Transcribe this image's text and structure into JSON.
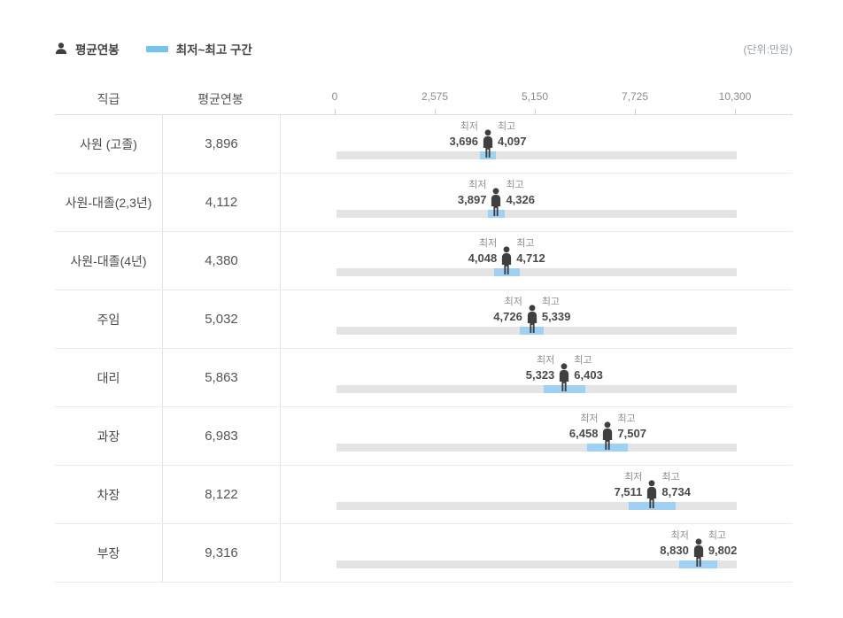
{
  "page": {
    "unit_note": "(단위:만원)"
  },
  "legend": {
    "avg_label": "평균연봉",
    "range_label": "최저~최고 구간"
  },
  "table": {
    "col_position": "직급",
    "col_avg": "평균연봉"
  },
  "chart_data": {
    "type": "bar",
    "subtype": "horizontal-range-bar-with-average-marker",
    "unit": "만원",
    "min_label": "최저",
    "max_label": "최고",
    "axis_max": 10300,
    "axis_ticks": [
      0,
      2575,
      5150,
      7725,
      10300
    ],
    "axis_tick_labels": [
      "0",
      "2,575",
      "5,150",
      "7,725",
      "10,300"
    ],
    "rows": [
      {
        "position": "사원 (고졸)",
        "avg": 3896,
        "min": 3696,
        "max": 4097
      },
      {
        "position": "사원-대졸(2,3년)",
        "avg": 4112,
        "min": 3897,
        "max": 4326
      },
      {
        "position": "사원-대졸(4년)",
        "avg": 4380,
        "min": 4048,
        "max": 4712
      },
      {
        "position": "주임",
        "avg": 5032,
        "min": 4726,
        "max": 5339
      },
      {
        "position": "대리",
        "avg": 5863,
        "min": 5323,
        "max": 6403
      },
      {
        "position": "과장",
        "avg": 6983,
        "min": 6458,
        "max": 7507
      },
      {
        "position": "차장",
        "avg": 8122,
        "min": 7511,
        "max": 8734
      },
      {
        "position": "부장",
        "avg": 9316,
        "min": 8830,
        "max": 9802
      }
    ],
    "colors": {
      "legend_blue": "#74c3ee",
      "range_blue": "#9dd2f5",
      "track_gray": "#e4e4e4",
      "person_dark": "#3f3f3f"
    }
  }
}
